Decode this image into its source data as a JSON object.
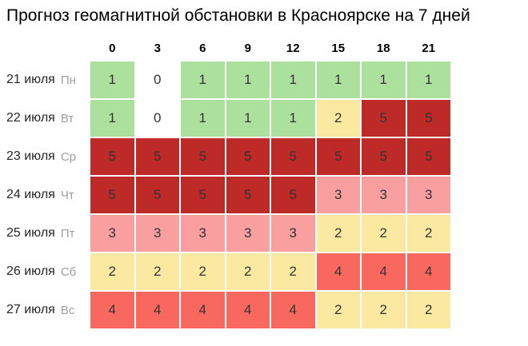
{
  "title": "Прогноз геомагнитной обстановки в Красноярске на 7 дней",
  "ui_colors": {
    "background": "#ffffff",
    "title_text": "#000000",
    "header_text": "#000000",
    "date_text": "#262626",
    "weekday_text": "#9e9e9e",
    "cell_text": "#333333"
  },
  "chart_data": {
    "type": "heatmap",
    "title": "Прогноз геомагнитной обстановки в Красноярске на 7 дней",
    "xlabel": "",
    "ylabel": "",
    "x": [
      "0",
      "3",
      "6",
      "9",
      "12",
      "15",
      "18",
      "21"
    ],
    "rows": [
      {
        "date": "21 июля",
        "weekday": "Пн",
        "values": [
          1,
          0,
          1,
          1,
          1,
          1,
          1,
          1
        ]
      },
      {
        "date": "22 июля",
        "weekday": "Вт",
        "values": [
          1,
          0,
          1,
          1,
          1,
          2,
          5,
          5
        ]
      },
      {
        "date": "23 июля",
        "weekday": "Ср",
        "values": [
          5,
          5,
          5,
          5,
          5,
          5,
          5,
          5
        ]
      },
      {
        "date": "24 июля",
        "weekday": "Чт",
        "values": [
          5,
          5,
          5,
          5,
          5,
          3,
          3,
          3
        ]
      },
      {
        "date": "25 июля",
        "weekday": "Пт",
        "values": [
          3,
          3,
          3,
          3,
          3,
          2,
          2,
          2
        ]
      },
      {
        "date": "26 июля",
        "weekday": "Сб",
        "values": [
          2,
          2,
          2,
          2,
          2,
          4,
          4,
          4
        ]
      },
      {
        "date": "27 июля",
        "weekday": "Вс",
        "values": [
          4,
          4,
          4,
          4,
          4,
          2,
          2,
          2
        ]
      }
    ],
    "value_colors": {
      "0": "#ffffff",
      "1": "#abe19c",
      "2": "#fbe9a2",
      "3": "#f99f9f",
      "4": "#f9685f",
      "5": "#bd2a28"
    },
    "value_scale": [
      0,
      5
    ],
    "grid": false,
    "legend": false
  }
}
